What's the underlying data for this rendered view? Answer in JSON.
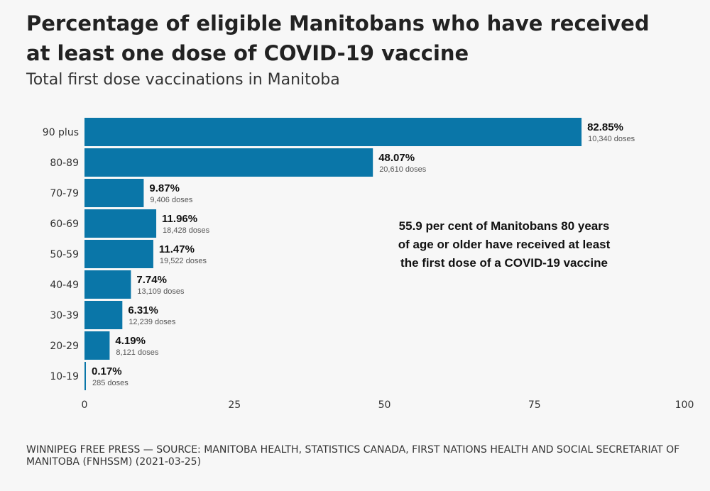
{
  "title": "Percentage of eligible Manitobans who have received at least one dose of COVID-19 vaccine",
  "subtitle": "Total first dose vaccinations in Manitoba",
  "annotation": "55.9 per cent of Manitobans 80 years of age or older have received at least the first dose of a COVID-19 vaccine",
  "source": "WINNIPEG FREE PRESS — SOURCE: MANITOBA HEALTH, STATISTICS CANADA, FIRST NATIONS HEALTH AND SOCIAL SECRETARIAT OF MANITOBA (FNHSSM) (2021-03-25)",
  "colors": {
    "bar": "#0a76a8",
    "background": "#f7f7f7"
  },
  "chart_data": {
    "type": "bar",
    "orientation": "horizontal",
    "categories": [
      "90 plus",
      "80-89",
      "70-79",
      "60-69",
      "50-59",
      "40-49",
      "30-39",
      "20-29",
      "10-19"
    ],
    "values": [
      82.85,
      48.07,
      9.87,
      11.96,
      11.47,
      7.74,
      6.31,
      4.19,
      0.17
    ],
    "value_labels": [
      "82.85%",
      "48.07%",
      "9.87%",
      "11.96%",
      "11.47%",
      "7.74%",
      "6.31%",
      "4.19%",
      "0.17%"
    ],
    "doses": [
      "10,340 doses",
      "20,610 doses",
      "9,406 doses",
      "18,428 doses",
      "19,522 doses",
      "13,109 doses",
      "12,239 doses",
      "8,121 doses",
      "285 doses"
    ],
    "xlim": [
      0,
      100
    ],
    "xticks": [
      0,
      25,
      50,
      75,
      100
    ],
    "xlabel": "",
    "ylabel": "",
    "grid": false
  }
}
